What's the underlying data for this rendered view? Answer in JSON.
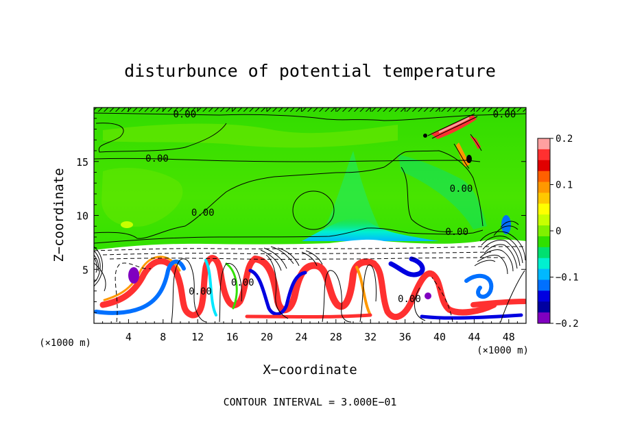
{
  "chart_data": {
    "type": "heatmap",
    "title": "disturbunce of potential temperature",
    "xlabel": "X−coordinate",
    "ylabel": "Z−coordinate",
    "xlim": [
      0,
      50
    ],
    "ylim": [
      0,
      20
    ],
    "x_ticks": [
      4,
      8,
      12,
      16,
      20,
      24,
      28,
      32,
      36,
      40,
      44,
      48
    ],
    "y_ticks": [
      5,
      10,
      15
    ],
    "x_tick_labels": [
      "4",
      "8",
      "12",
      "16",
      "20",
      "24",
      "28",
      "32",
      "36",
      "40",
      "44",
      "48"
    ],
    "y_tick_labels": [
      "5",
      "10",
      "15"
    ],
    "x_unit_left": "(×1000 m)",
    "x_unit_right": "(×1000 m)",
    "footer": "CONTOUR INTERVAL = 3.000E−01",
    "contour_labels": [
      {
        "text": "0.00",
        "x": 10.5,
        "z": 19.4
      },
      {
        "text": "0.00",
        "x": 7.3,
        "z": 15.3
      },
      {
        "text": "0.00",
        "x": 12.6,
        "z": 10.3
      },
      {
        "text": "0.00",
        "x": 42.5,
        "z": 12.5
      },
      {
        "text": "0.00",
        "x": 42.0,
        "z": 8.5
      },
      {
        "text": "0.00",
        "x": 12.3,
        "z": 3.0
      },
      {
        "text": "0.00",
        "x": 17.2,
        "z": 3.8
      },
      {
        "text": "0.00",
        "x": 36.5,
        "z": 2.3
      },
      {
        "text": "0.00",
        "x": 47.5,
        "z": 19.4
      }
    ],
    "colorbar": {
      "min": -0.2,
      "max": 0.2,
      "tick_values": [
        0.2,
        0.1,
        0,
        -0.1,
        -0.2
      ],
      "tick_labels": [
        "0.2",
        "0.1",
        "0",
        "−0.1",
        "−0.2"
      ],
      "colors_top_to_bottom": [
        "#ffa0a0",
        "#ff3030",
        "#e00000",
        "#ff6000",
        "#ff9800",
        "#ffc800",
        "#ffff00",
        "#c8ff00",
        "#80f000",
        "#30e000",
        "#00e070",
        "#00f0d0",
        "#00b8ff",
        "#0070ff",
        "#0000e0",
        "#0000a0",
        "#8000c0"
      ]
    },
    "field": {
      "background_value": 0.0,
      "background_color": "#3ee000",
      "mixed_layer_top_z": 7.0,
      "mixed_layer_color": "#ffffff"
    }
  }
}
